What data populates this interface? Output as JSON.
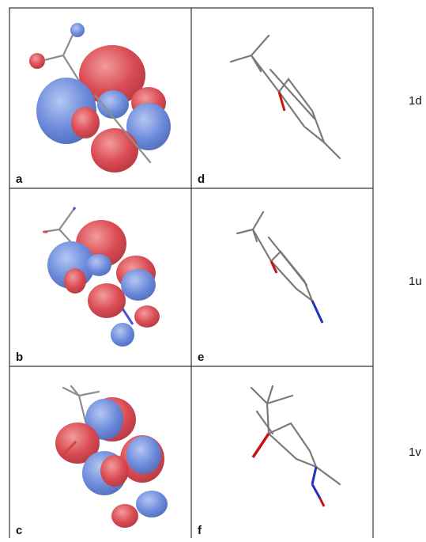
{
  "panels": [
    "a",
    "b",
    "c",
    "d",
    "e",
    "f"
  ],
  "compounds": [
    "1d",
    "1u",
    "1v"
  ]
}
